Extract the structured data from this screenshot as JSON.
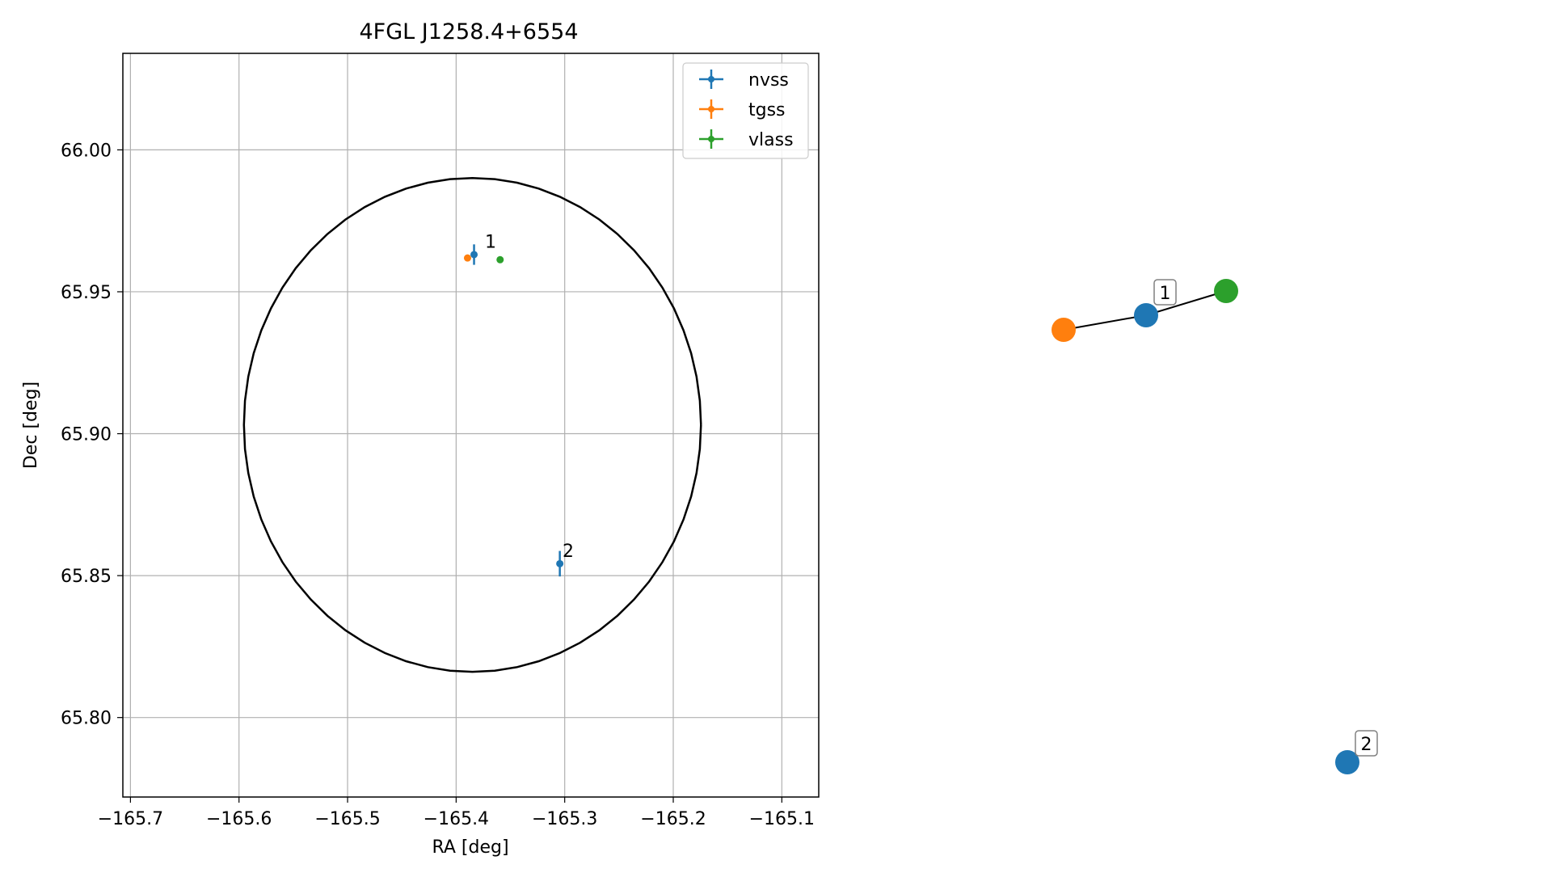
{
  "chart_data": [
    {
      "type": "scatter",
      "title": "4FGL J1258.4+6554",
      "xlabel": "RA [deg]",
      "ylabel": "Dec [deg]",
      "xlim": [
        -165.707,
        -165.066
      ],
      "ylim": [
        65.772,
        66.034
      ],
      "xticks": [
        -165.7,
        -165.6,
        -165.5,
        -165.4,
        -165.3,
        -165.2,
        -165.1
      ],
      "xtick_labels": [
        "−165.7",
        "−165.6",
        "−165.5",
        "−165.4",
        "−165.3",
        "−165.2",
        "−165.1"
      ],
      "yticks": [
        65.8,
        65.85,
        65.9,
        65.95,
        66.0
      ],
      "ytick_labels": [
        "65.80",
        "65.85",
        "65.90",
        "65.95",
        "66.00"
      ],
      "grid": true,
      "legend_position": "top-right",
      "series": [
        {
          "name": "nvss",
          "color": "#1f77b4",
          "points": [
            {
              "x": -165.3835,
              "y": 65.9631,
              "yerr": 0.0036,
              "xerr": 0.0015
            },
            {
              "x": -165.3045,
              "y": 65.8542,
              "yerr": 0.0045,
              "xerr": 0.0008
            }
          ]
        },
        {
          "name": "tgss",
          "color": "#ff7f0e",
          "points": [
            {
              "x": -165.3895,
              "y": 65.9619,
              "yerr": 0,
              "xerr": 0
            }
          ]
        },
        {
          "name": "vlass",
          "color": "#2ca02c",
          "points": [
            {
              "x": -165.3595,
              "y": 65.9613,
              "yerr": 0,
              "xerr": 0
            }
          ]
        }
      ],
      "annotations": [
        {
          "text": "1",
          "x": -165.3735,
          "y": 65.9655
        },
        {
          "text": "2",
          "x": -165.302,
          "y": 65.8566
        }
      ],
      "error_ellipse": {
        "center_ra": -165.385,
        "center_dec": 65.9031,
        "semi_ra": 0.2105,
        "semi_dec": 0.087,
        "color": "#000000"
      }
    },
    {
      "type": "graph",
      "nodes": [
        {
          "id": "tgss",
          "color": "#ff7f0e",
          "label": ""
        },
        {
          "id": "nvss-1",
          "color": "#1f77b4",
          "label": "1"
        },
        {
          "id": "vlass",
          "color": "#2ca02c",
          "label": ""
        },
        {
          "id": "nvss-2",
          "color": "#1f77b4",
          "label": "2"
        }
      ],
      "edges": [
        [
          "tgss",
          "nvss-1"
        ],
        [
          "nvss-1",
          "vlass"
        ]
      ]
    }
  ]
}
